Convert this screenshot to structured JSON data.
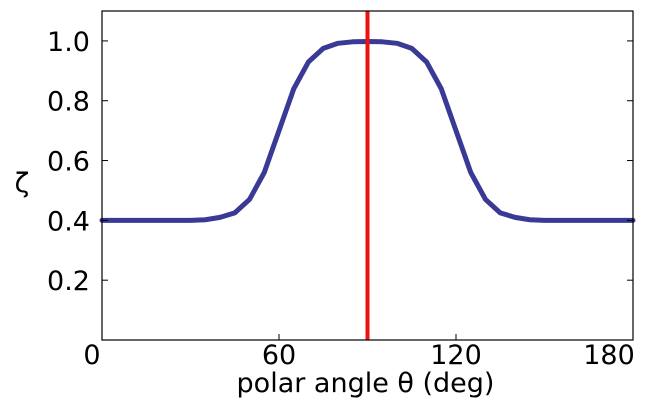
{
  "chart_data": {
    "type": "line",
    "xlabel": "polar angle θ  (deg)",
    "ylabel": "ζ",
    "xlim": [
      0,
      180
    ],
    "ylim": [
      0,
      1.1
    ],
    "grid": false,
    "xticks": [
      0,
      60,
      120,
      180
    ],
    "xtick_labels": [
      "0",
      "60",
      "120",
      "180"
    ],
    "yticks": [
      0.2,
      0.4,
      0.6,
      0.8,
      1.0
    ],
    "ytick_labels": [
      "0.2",
      "0.4",
      "0.6",
      "0.8",
      "1.0"
    ],
    "series": [
      {
        "color": "#3a3a96",
        "x": [
          0,
          10,
          20,
          30,
          35,
          40,
          45,
          50,
          55,
          60,
          65,
          70,
          75,
          80,
          85,
          90,
          95,
          100,
          105,
          110,
          115,
          120,
          125,
          130,
          135,
          140,
          145,
          150,
          160,
          170,
          180
        ],
        "y": [
          0.4,
          0.4,
          0.4,
          0.4,
          0.402,
          0.41,
          0.425,
          0.47,
          0.56,
          0.7,
          0.84,
          0.93,
          0.975,
          0.992,
          0.997,
          0.998,
          0.997,
          0.992,
          0.975,
          0.93,
          0.84,
          0.7,
          0.56,
          0.47,
          0.425,
          0.41,
          0.402,
          0.4,
          0.4,
          0.4,
          0.4
        ]
      }
    ],
    "vertical_line": {
      "x": 90,
      "color": "#ee1111"
    }
  }
}
